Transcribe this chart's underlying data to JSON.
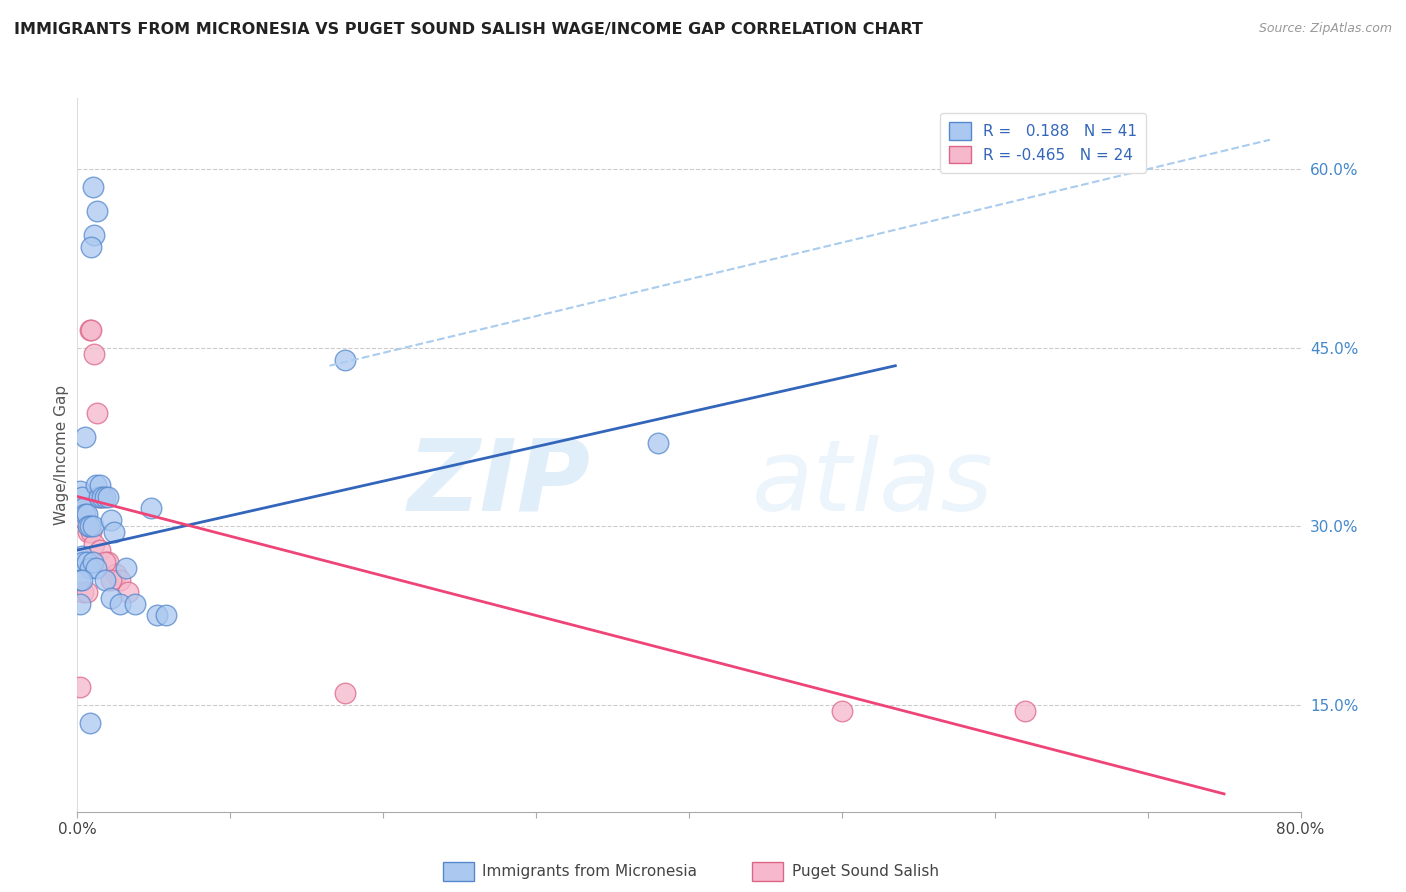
{
  "title": "IMMIGRANTS FROM MICRONESIA VS PUGET SOUND SALISH WAGE/INCOME GAP CORRELATION CHART",
  "source": "Source: ZipAtlas.com",
  "ylabel": "Wage/Income Gap",
  "xlim": [
    0.0,
    0.8
  ],
  "ylim": [
    0.06,
    0.66
  ],
  "yticks_right": [
    0.15,
    0.3,
    0.45,
    0.6
  ],
  "ytick_right_labels": [
    "15.0%",
    "30.0%",
    "45.0%",
    "60.0%"
  ],
  "blue_color": "#aac8f0",
  "pink_color": "#f5b8cc",
  "blue_edge_color": "#5588cc",
  "pink_edge_color": "#dd6688",
  "blue_line_color": "#3366bb",
  "pink_line_color": "#ee4477",
  "dashed_line_color": "#aaccee",
  "blue_scatter_x": [
    0.01,
    0.013,
    0.011,
    0.009,
    0.002,
    0.003,
    0.004,
    0.005,
    0.006,
    0.007,
    0.008,
    0.01,
    0.012,
    0.014,
    0.015,
    0.016,
    0.018,
    0.02,
    0.022,
    0.024,
    0.003,
    0.004,
    0.006,
    0.008,
    0.01,
    0.012,
    0.018,
    0.022,
    0.028,
    0.032,
    0.038,
    0.048,
    0.052,
    0.058,
    0.002,
    0.003,
    0.002,
    0.005,
    0.38,
    0.175,
    0.008
  ],
  "blue_scatter_y": [
    0.585,
    0.565,
    0.545,
    0.535,
    0.33,
    0.325,
    0.315,
    0.31,
    0.31,
    0.3,
    0.3,
    0.3,
    0.335,
    0.325,
    0.335,
    0.325,
    0.325,
    0.325,
    0.305,
    0.295,
    0.275,
    0.27,
    0.27,
    0.265,
    0.27,
    0.265,
    0.255,
    0.24,
    0.235,
    0.265,
    0.235,
    0.315,
    0.225,
    0.225,
    0.255,
    0.255,
    0.235,
    0.375,
    0.37,
    0.44,
    0.135
  ],
  "pink_scatter_x": [
    0.008,
    0.009,
    0.011,
    0.013,
    0.014,
    0.016,
    0.003,
    0.005,
    0.007,
    0.009,
    0.011,
    0.015,
    0.02,
    0.025,
    0.028,
    0.033,
    0.018,
    0.022,
    0.004,
    0.006,
    0.175,
    0.002,
    0.5,
    0.62
  ],
  "pink_scatter_y": [
    0.465,
    0.465,
    0.445,
    0.395,
    0.325,
    0.325,
    0.315,
    0.305,
    0.295,
    0.295,
    0.285,
    0.28,
    0.27,
    0.26,
    0.255,
    0.245,
    0.27,
    0.255,
    0.245,
    0.245,
    0.16,
    0.165,
    0.145,
    0.145
  ],
  "blue_line_x": [
    0.0,
    0.535
  ],
  "blue_line_y": [
    0.28,
    0.435
  ],
  "dashed_line_x": [
    0.165,
    0.78
  ],
  "dashed_line_y": [
    0.435,
    0.625
  ],
  "pink_line_x": [
    0.0,
    0.75
  ],
  "pink_line_y": [
    0.325,
    0.075
  ],
  "legend_text_blue": "R =   0.188   N = 41",
  "legend_text_pink": "R = -0.465   N = 24",
  "bottom_label_blue": "Immigrants from Micronesia",
  "bottom_label_pink": "Puget Sound Salish"
}
